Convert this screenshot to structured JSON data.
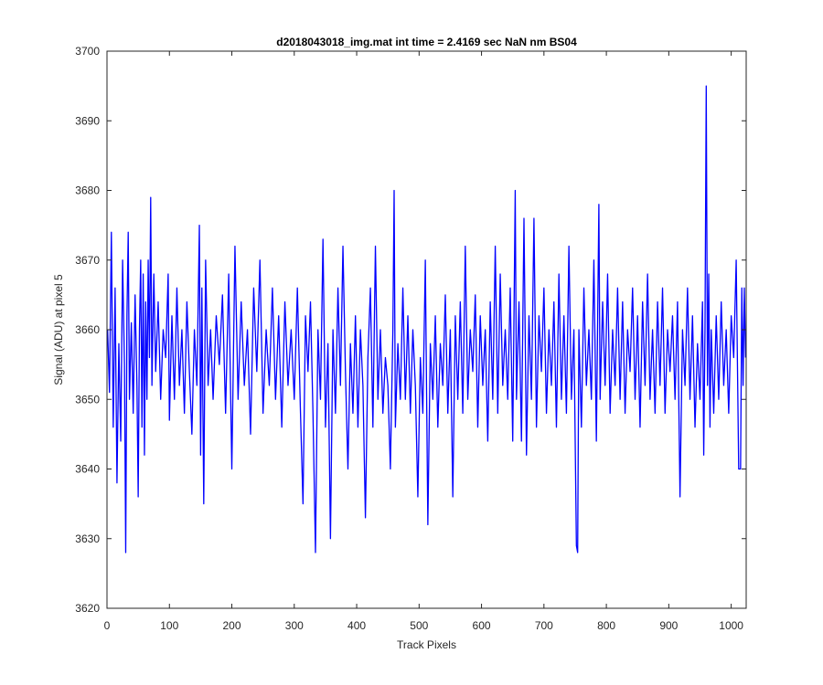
{
  "chart_data": {
    "type": "line",
    "title": "d2018043018_img.mat int time = 2.4169 sec  NaN nm BS04",
    "xlabel": "Track Pixels",
    "ylabel": "Signal (ADU) at pixel 5",
    "xlim": [
      0,
      1024
    ],
    "ylim": [
      3620,
      3700
    ],
    "xticks": [
      0,
      100,
      200,
      300,
      400,
      500,
      600,
      700,
      800,
      900,
      1000
    ],
    "yticks": [
      3620,
      3630,
      3640,
      3650,
      3660,
      3670,
      3680,
      3690,
      3700
    ],
    "grid": false,
    "series": [
      {
        "color": "#0000ff",
        "points": [
          [
            1,
            3660
          ],
          [
            4,
            3651
          ],
          [
            7,
            3674
          ],
          [
            10,
            3646
          ],
          [
            13,
            3666
          ],
          [
            16,
            3638
          ],
          [
            19,
            3658
          ],
          [
            22,
            3644
          ],
          [
            25,
            3670
          ],
          [
            28,
            3655
          ],
          [
            30,
            3628
          ],
          [
            32,
            3662
          ],
          [
            34,
            3674
          ],
          [
            36,
            3650
          ],
          [
            39,
            3661
          ],
          [
            42,
            3648
          ],
          [
            45,
            3665
          ],
          [
            48,
            3652
          ],
          [
            50,
            3636
          ],
          [
            52,
            3660
          ],
          [
            54,
            3670
          ],
          [
            56,
            3646
          ],
          [
            58,
            3668
          ],
          [
            60,
            3642
          ],
          [
            62,
            3664
          ],
          [
            64,
            3650
          ],
          [
            66,
            3670
          ],
          [
            68,
            3656
          ],
          [
            70,
            3679
          ],
          [
            72,
            3652
          ],
          [
            75,
            3668
          ],
          [
            78,
            3654
          ],
          [
            82,
            3664
          ],
          [
            86,
            3650
          ],
          [
            90,
            3660
          ],
          [
            94,
            3656
          ],
          [
            98,
            3668
          ],
          [
            100,
            3647
          ],
          [
            104,
            3662
          ],
          [
            108,
            3650
          ],
          [
            112,
            3666
          ],
          [
            116,
            3652
          ],
          [
            120,
            3660
          ],
          [
            124,
            3648
          ],
          [
            128,
            3664
          ],
          [
            132,
            3654
          ],
          [
            136,
            3645
          ],
          [
            140,
            3660
          ],
          [
            144,
            3652
          ],
          [
            148,
            3675
          ],
          [
            150,
            3642
          ],
          [
            152,
            3666
          ],
          [
            155,
            3635
          ],
          [
            158,
            3670
          ],
          [
            162,
            3652
          ],
          [
            166,
            3660
          ],
          [
            170,
            3650
          ],
          [
            175,
            3662
          ],
          [
            180,
            3655
          ],
          [
            185,
            3665
          ],
          [
            190,
            3648
          ],
          [
            195,
            3668
          ],
          [
            200,
            3640
          ],
          [
            205,
            3672
          ],
          [
            210,
            3650
          ],
          [
            215,
            3664
          ],
          [
            220,
            3652
          ],
          [
            225,
            3660
          ],
          [
            230,
            3645
          ],
          [
            235,
            3666
          ],
          [
            240,
            3654
          ],
          [
            245,
            3670
          ],
          [
            250,
            3648
          ],
          [
            255,
            3660
          ],
          [
            260,
            3652
          ],
          [
            265,
            3666
          ],
          [
            270,
            3650
          ],
          [
            275,
            3662
          ],
          [
            280,
            3646
          ],
          [
            285,
            3664
          ],
          [
            290,
            3652
          ],
          [
            295,
            3660
          ],
          [
            300,
            3650
          ],
          [
            305,
            3666
          ],
          [
            310,
            3648
          ],
          [
            314,
            3635
          ],
          [
            318,
            3662
          ],
          [
            322,
            3654
          ],
          [
            326,
            3664
          ],
          [
            330,
            3648
          ],
          [
            334,
            3628
          ],
          [
            338,
            3660
          ],
          [
            342,
            3650
          ],
          [
            346,
            3673
          ],
          [
            350,
            3646
          ],
          [
            354,
            3658
          ],
          [
            358,
            3630
          ],
          [
            362,
            3660
          ],
          [
            366,
            3648
          ],
          [
            370,
            3666
          ],
          [
            374,
            3652
          ],
          [
            378,
            3672
          ],
          [
            382,
            3654
          ],
          [
            386,
            3640
          ],
          [
            390,
            3658
          ],
          [
            394,
            3648
          ],
          [
            398,
            3662
          ],
          [
            402,
            3646
          ],
          [
            406,
            3660
          ],
          [
            410,
            3652
          ],
          [
            414,
            3633
          ],
          [
            418,
            3656
          ],
          [
            422,
            3666
          ],
          [
            426,
            3646
          ],
          [
            430,
            3672
          ],
          [
            434,
            3650
          ],
          [
            438,
            3660
          ],
          [
            442,
            3648
          ],
          [
            446,
            3656
          ],
          [
            450,
            3652
          ],
          [
            454,
            3640
          ],
          [
            458,
            3660
          ],
          [
            460,
            3680
          ],
          [
            462,
            3646
          ],
          [
            466,
            3658
          ],
          [
            470,
            3650
          ],
          [
            474,
            3666
          ],
          [
            478,
            3650
          ],
          [
            482,
            3662
          ],
          [
            486,
            3648
          ],
          [
            490,
            3660
          ],
          [
            494,
            3652
          ],
          [
            498,
            3636
          ],
          [
            502,
            3656
          ],
          [
            506,
            3648
          ],
          [
            510,
            3670
          ],
          [
            514,
            3632
          ],
          [
            518,
            3658
          ],
          [
            522,
            3650
          ],
          [
            526,
            3662
          ],
          [
            530,
            3646
          ],
          [
            534,
            3658
          ],
          [
            538,
            3652
          ],
          [
            542,
            3665
          ],
          [
            546,
            3648
          ],
          [
            550,
            3660
          ],
          [
            554,
            3636
          ],
          [
            558,
            3662
          ],
          [
            562,
            3650
          ],
          [
            566,
            3664
          ],
          [
            570,
            3648
          ],
          [
            574,
            3672
          ],
          [
            578,
            3650
          ],
          [
            582,
            3660
          ],
          [
            586,
            3654
          ],
          [
            590,
            3665
          ],
          [
            594,
            3646
          ],
          [
            598,
            3662
          ],
          [
            602,
            3652
          ],
          [
            606,
            3660
          ],
          [
            610,
            3644
          ],
          [
            614,
            3664
          ],
          [
            618,
            3650
          ],
          [
            622,
            3672
          ],
          [
            626,
            3648
          ],
          [
            630,
            3668
          ],
          [
            634,
            3652
          ],
          [
            638,
            3660
          ],
          [
            642,
            3650
          ],
          [
            646,
            3666
          ],
          [
            650,
            3644
          ],
          [
            654,
            3680
          ],
          [
            656,
            3650
          ],
          [
            660,
            3664
          ],
          [
            664,
            3644
          ],
          [
            668,
            3676
          ],
          [
            672,
            3642
          ],
          [
            676,
            3662
          ],
          [
            680,
            3650
          ],
          [
            684,
            3676
          ],
          [
            688,
            3646
          ],
          [
            692,
            3662
          ],
          [
            696,
            3654
          ],
          [
            700,
            3666
          ],
          [
            704,
            3648
          ],
          [
            708,
            3660
          ],
          [
            712,
            3652
          ],
          [
            716,
            3664
          ],
          [
            720,
            3646
          ],
          [
            724,
            3668
          ],
          [
            728,
            3650
          ],
          [
            732,
            3662
          ],
          [
            736,
            3648
          ],
          [
            740,
            3672
          ],
          [
            744,
            3650
          ],
          [
            748,
            3660
          ],
          [
            752,
            3629
          ],
          [
            754,
            3628
          ],
          [
            756,
            3660
          ],
          [
            760,
            3646
          ],
          [
            764,
            3666
          ],
          [
            768,
            3652
          ],
          [
            772,
            3660
          ],
          [
            776,
            3650
          ],
          [
            780,
            3670
          ],
          [
            784,
            3644
          ],
          [
            788,
            3678
          ],
          [
            790,
            3650
          ],
          [
            794,
            3664
          ],
          [
            798,
            3652
          ],
          [
            802,
            3668
          ],
          [
            806,
            3648
          ],
          [
            810,
            3660
          ],
          [
            814,
            3652
          ],
          [
            818,
            3666
          ],
          [
            822,
            3650
          ],
          [
            826,
            3664
          ],
          [
            830,
            3648
          ],
          [
            834,
            3660
          ],
          [
            838,
            3654
          ],
          [
            842,
            3666
          ],
          [
            846,
            3650
          ],
          [
            850,
            3662
          ],
          [
            854,
            3646
          ],
          [
            858,
            3664
          ],
          [
            862,
            3652
          ],
          [
            866,
            3668
          ],
          [
            870,
            3650
          ],
          [
            874,
            3660
          ],
          [
            878,
            3648
          ],
          [
            882,
            3664
          ],
          [
            886,
            3652
          ],
          [
            890,
            3666
          ],
          [
            894,
            3648
          ],
          [
            898,
            3660
          ],
          [
            902,
            3654
          ],
          [
            906,
            3662
          ],
          [
            910,
            3650
          ],
          [
            914,
            3664
          ],
          [
            918,
            3636
          ],
          [
            922,
            3660
          ],
          [
            926,
            3652
          ],
          [
            930,
            3666
          ],
          [
            934,
            3650
          ],
          [
            938,
            3662
          ],
          [
            942,
            3646
          ],
          [
            946,
            3658
          ],
          [
            950,
            3650
          ],
          [
            954,
            3664
          ],
          [
            956,
            3642
          ],
          [
            958,
            3660
          ],
          [
            960,
            3695
          ],
          [
            962,
            3652
          ],
          [
            964,
            3668
          ],
          [
            966,
            3646
          ],
          [
            968,
            3660
          ],
          [
            972,
            3648
          ],
          [
            976,
            3662
          ],
          [
            980,
            3650
          ],
          [
            984,
            3664
          ],
          [
            988,
            3652
          ],
          [
            992,
            3660
          ],
          [
            996,
            3648
          ],
          [
            1000,
            3662
          ],
          [
            1004,
            3656
          ],
          [
            1008,
            3670
          ],
          [
            1012,
            3640
          ],
          [
            1015,
            3640
          ],
          [
            1017,
            3666
          ],
          [
            1019,
            3652
          ],
          [
            1021,
            3666
          ],
          [
            1023,
            3656
          ]
        ]
      }
    ]
  }
}
